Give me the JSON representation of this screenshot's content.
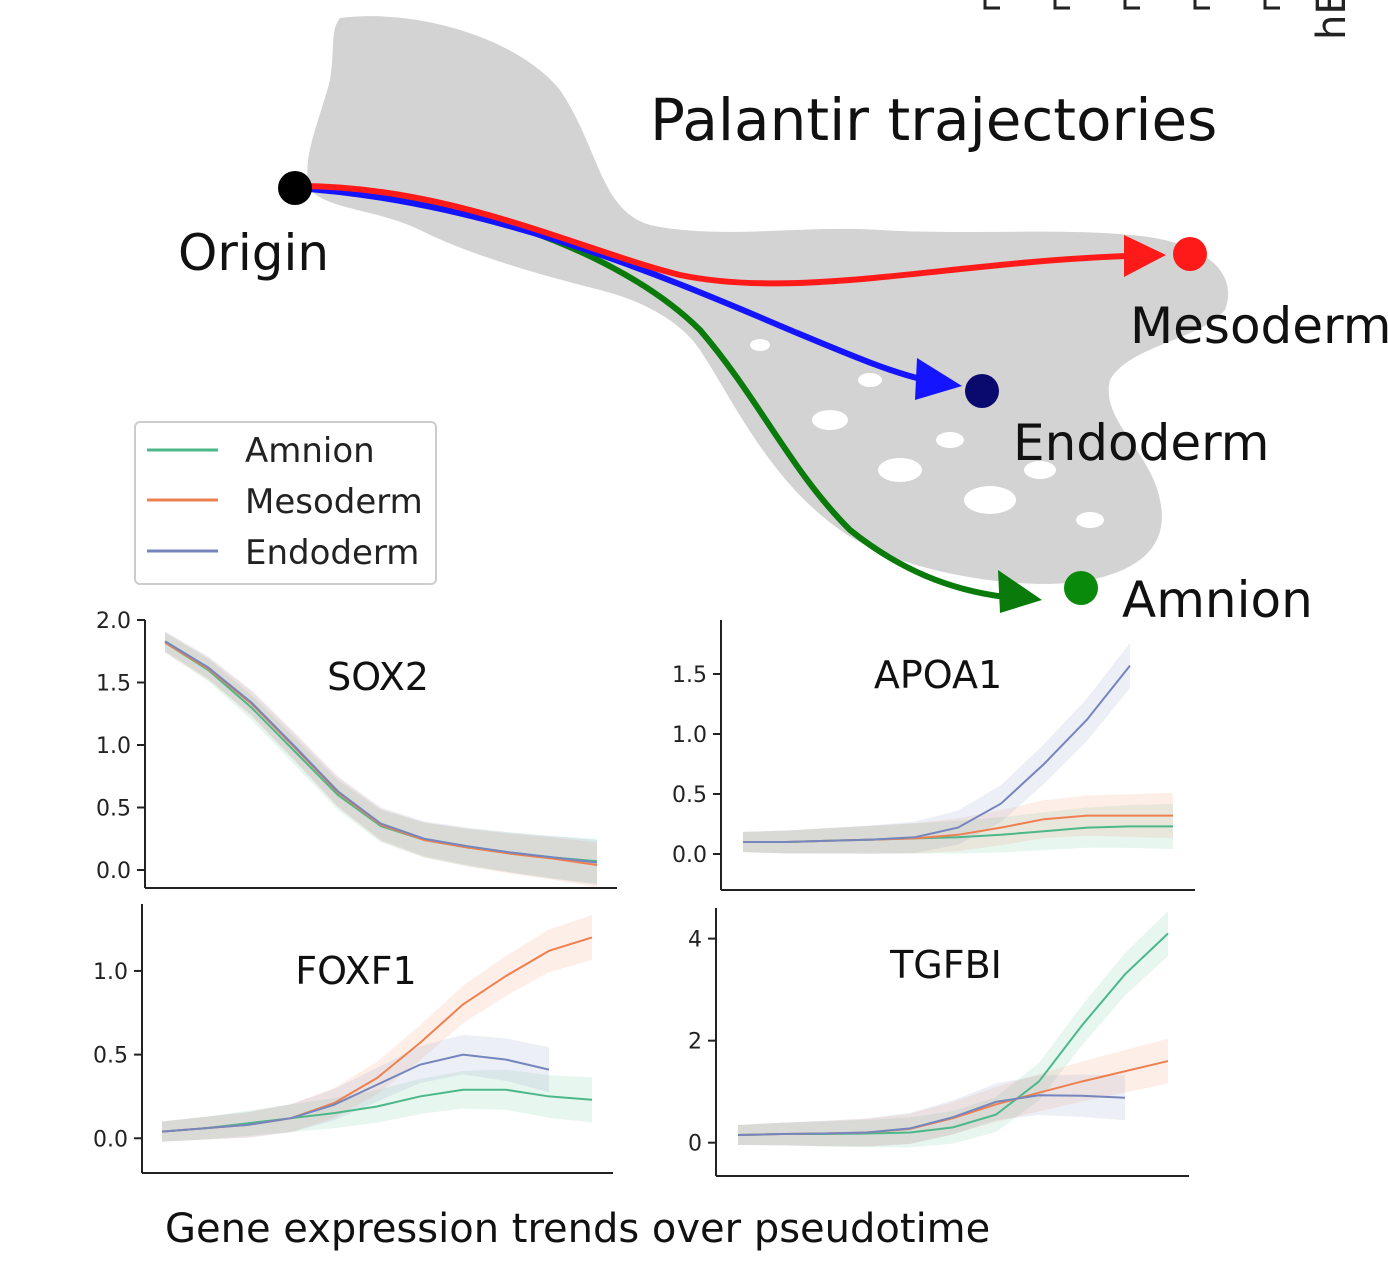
{
  "corner_label": "hE",
  "umap": {
    "title": "Palantir trajectories",
    "origin_label": "Origin",
    "trajectories": [
      {
        "name": "Mesoderm",
        "color": "#ff1a1a",
        "endpoint_color": "#ff1a1a"
      },
      {
        "name": "Endoderm",
        "color": "#1414ff",
        "endpoint_color": "#0a0a6e"
      },
      {
        "name": "Amnion",
        "color": "#0a7a0a",
        "endpoint_color": "#0a8a0a"
      }
    ],
    "background_color": "#d3d3d3"
  },
  "legend": {
    "entries": [
      {
        "label": "Amnion",
        "color": "#4cb88a"
      },
      {
        "label": "Mesoderm",
        "color": "#ee8050"
      },
      {
        "label": "Endoderm",
        "color": "#7585bd"
      }
    ]
  },
  "caption": "Gene expression trends over pseudotime",
  "chart_data": [
    {
      "type": "line",
      "title": "SOX2",
      "x": [
        0,
        0.1,
        0.2,
        0.3,
        0.4,
        0.5,
        0.6,
        0.7,
        0.8,
        0.9,
        1.0
      ],
      "ylim": [
        0,
        2.0
      ],
      "yticks": [
        "0.0",
        "0.5",
        "1.0",
        "1.5",
        "2.0"
      ],
      "series": [
        {
          "name": "Amnion",
          "color": "#4cb88a",
          "values": [
            1.82,
            1.6,
            1.3,
            0.95,
            0.6,
            0.35,
            0.24,
            0.18,
            0.14,
            0.1,
            0.07
          ]
        },
        {
          "name": "Mesoderm",
          "color": "#ee8050",
          "values": [
            1.82,
            1.61,
            1.33,
            0.98,
            0.62,
            0.36,
            0.24,
            0.18,
            0.13,
            0.09,
            0.04
          ]
        },
        {
          "name": "Endoderm",
          "color": "#7585bd",
          "values": [
            1.83,
            1.62,
            1.34,
            0.99,
            0.63,
            0.37,
            0.25,
            0.19,
            0.14,
            0.1,
            0.06
          ]
        }
      ]
    },
    {
      "type": "line",
      "title": "APOA1",
      "x": [
        0,
        0.1,
        0.2,
        0.3,
        0.4,
        0.5,
        0.6,
        0.7,
        0.8,
        0.9,
        1.0
      ],
      "ylim": [
        -0.15,
        1.95
      ],
      "yticks": [
        "0.0",
        "0.5",
        "1.0",
        "1.5"
      ],
      "series": [
        {
          "name": "Amnion",
          "color": "#4cb88a",
          "values": [
            0.1,
            0.1,
            0.11,
            0.12,
            0.13,
            0.14,
            0.16,
            0.19,
            0.22,
            0.23,
            0.23
          ]
        },
        {
          "name": "Mesoderm",
          "color": "#ee8050",
          "values": [
            0.1,
            0.1,
            0.11,
            0.12,
            0.13,
            0.16,
            0.22,
            0.29,
            0.32,
            0.32,
            0.32
          ]
        },
        {
          "name": "Endoderm",
          "color": "#7585bd",
          "values": [
            0.1,
            0.1,
            0.11,
            0.12,
            0.14,
            0.22,
            0.42,
            0.75,
            1.12,
            1.57,
            null
          ]
        }
      ]
    },
    {
      "type": "line",
      "title": "FOXF1",
      "x": [
        0,
        0.1,
        0.2,
        0.3,
        0.4,
        0.5,
        0.6,
        0.7,
        0.8,
        0.9,
        1.0
      ],
      "ylim": [
        -0.1,
        1.4
      ],
      "yticks": [
        "0.0",
        "0.5",
        "1.0"
      ],
      "series": [
        {
          "name": "Amnion",
          "color": "#4cb88a",
          "values": [
            0.04,
            0.06,
            0.09,
            0.12,
            0.15,
            0.19,
            0.25,
            0.29,
            0.29,
            0.25,
            0.23
          ]
        },
        {
          "name": "Mesoderm",
          "color": "#ee8050",
          "values": [
            0.04,
            0.06,
            0.08,
            0.12,
            0.21,
            0.36,
            0.57,
            0.8,
            0.97,
            1.12,
            1.2
          ]
        },
        {
          "name": "Endoderm",
          "color": "#7585bd",
          "values": [
            0.04,
            0.06,
            0.08,
            0.12,
            0.2,
            0.32,
            0.44,
            0.5,
            0.47,
            0.41,
            null
          ]
        }
      ]
    },
    {
      "type": "line",
      "title": "TGFBI",
      "x": [
        0,
        0.1,
        0.2,
        0.3,
        0.4,
        0.5,
        0.6,
        0.7,
        0.8,
        0.9,
        1.0
      ],
      "ylim": [
        -0.3,
        4.6
      ],
      "yticks": [
        "0",
        "2",
        "4"
      ],
      "series": [
        {
          "name": "Amnion",
          "color": "#4cb88a",
          "values": [
            0.15,
            0.17,
            0.17,
            0.18,
            0.2,
            0.3,
            0.55,
            1.2,
            2.3,
            3.3,
            4.1
          ]
        },
        {
          "name": "Mesoderm",
          "color": "#ee8050",
          "values": [
            0.15,
            0.17,
            0.18,
            0.2,
            0.27,
            0.48,
            0.75,
            0.98,
            1.2,
            1.4,
            1.6
          ]
        },
        {
          "name": "Endoderm",
          "color": "#7585bd",
          "values": [
            0.15,
            0.17,
            0.18,
            0.2,
            0.28,
            0.5,
            0.8,
            0.93,
            0.92,
            0.88,
            null
          ]
        }
      ]
    }
  ]
}
